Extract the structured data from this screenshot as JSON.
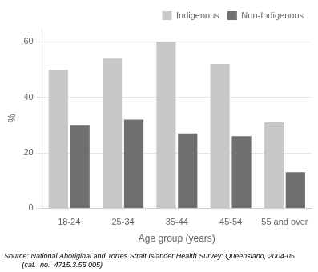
{
  "chart_data": {
    "type": "bar",
    "categories": [
      "18-24",
      "25-34",
      "35-44",
      "45-54",
      "55 and over"
    ],
    "series": [
      {
        "name": "Indigenous",
        "color": "#c8c8c8",
        "values": [
          50,
          54,
          60,
          52,
          31
        ]
      },
      {
        "name": "Non-Indigenous",
        "color": "#707070",
        "values": [
          30,
          32,
          27,
          26,
          13
        ]
      }
    ],
    "ylabel": "%",
    "xlabel": "Age group (years)",
    "ylim": [
      0,
      65
    ],
    "yticks": [
      0,
      20,
      40,
      60
    ],
    "grid": true,
    "legend": "upper right",
    "annotations": [
      "Source: National Aboriginal and Torres Strait Islander Health Survey: Queensland, 2004-05",
      "         (cat.  no.  4715.3.55.005)"
    ]
  }
}
